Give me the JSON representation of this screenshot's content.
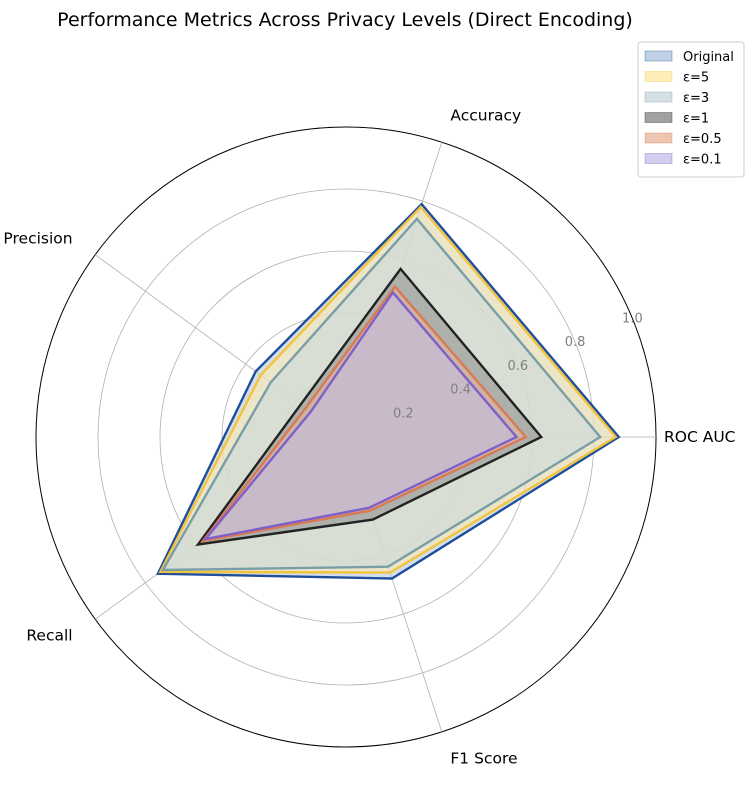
{
  "chart_data": {
    "type": "radar",
    "title": "Performance Metrics Across Privacy Levels (Direct Encoding)",
    "axes": [
      "ROC AUC",
      "Accuracy",
      "Precision",
      "Recall",
      "F1 Score"
    ],
    "rlim": [
      0,
      1.0
    ],
    "rticks": [
      "0.2",
      "0.4",
      "0.6",
      "0.8",
      "1.0"
    ],
    "grid": true,
    "legend_position": "top-right",
    "series": [
      {
        "name": "Original",
        "values": [
          0.88,
          0.79,
          0.36,
          0.75,
          0.48
        ],
        "fill": "#b0c4de",
        "line": "#1f4e9a"
      },
      {
        "name": "ε=5",
        "values": [
          0.87,
          0.78,
          0.34,
          0.74,
          0.46
        ],
        "fill": "#ffe9a8",
        "line": "#f2c43d"
      },
      {
        "name": "ε=3",
        "values": [
          0.82,
          0.74,
          0.3,
          0.73,
          0.44
        ],
        "fill": "#c9d8dc",
        "line": "#7a9ea7"
      },
      {
        "name": "ε=1",
        "values": [
          0.63,
          0.57,
          0.18,
          0.59,
          0.28
        ],
        "fill": "#8a8a8a",
        "line": "#222222"
      },
      {
        "name": "ε=0.5",
        "values": [
          0.58,
          0.51,
          0.16,
          0.57,
          0.25
        ],
        "fill": "#e8b89f",
        "line": "#d97a52"
      },
      {
        "name": "ε=0.1",
        "values": [
          0.55,
          0.49,
          0.14,
          0.56,
          0.24
        ],
        "fill": "#c4c0e8",
        "line": "#7f5fc8"
      }
    ]
  }
}
